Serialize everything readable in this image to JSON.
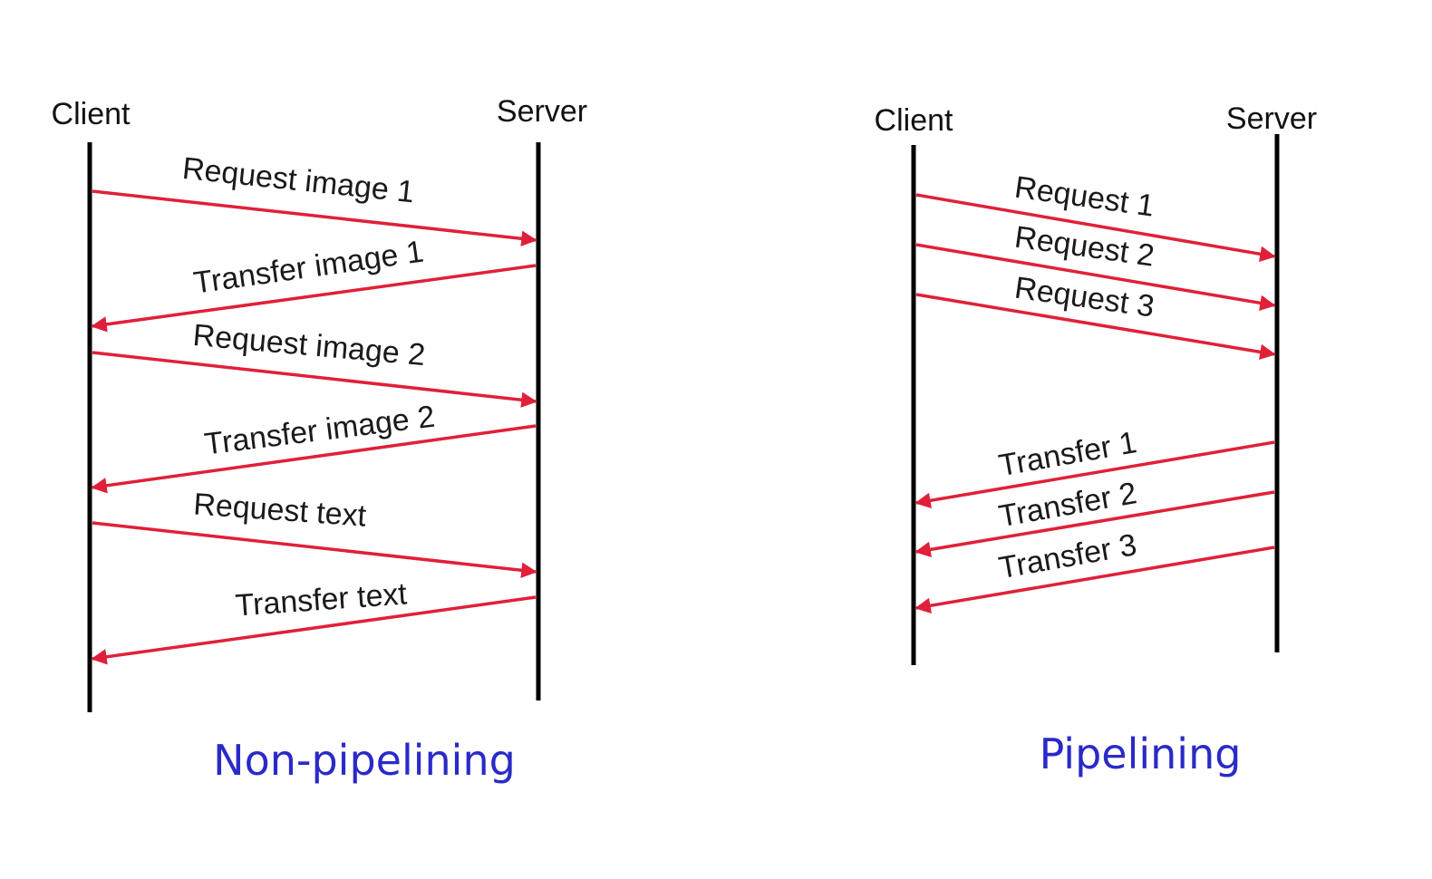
{
  "colors": {
    "arrow": "#e0203a",
    "lifeline": "#000000",
    "caption": "#2a2ac8"
  },
  "diagrams": [
    {
      "id": "non-pipelining",
      "client_label": "Client",
      "server_label": "Server",
      "caption": "Non-pipelining",
      "messages": [
        {
          "label": "Request image 1",
          "direction": "client-to-server"
        },
        {
          "label": "Transfer image 1",
          "direction": "server-to-client"
        },
        {
          "label": "Request image 2",
          "direction": "client-to-server"
        },
        {
          "label": "Transfer image 2",
          "direction": "server-to-client"
        },
        {
          "label": "Request text",
          "direction": "client-to-server"
        },
        {
          "label": "Transfer text",
          "direction": "server-to-client"
        }
      ]
    },
    {
      "id": "pipelining",
      "client_label": "Client",
      "server_label": "Server",
      "caption": "Pipelining",
      "messages": [
        {
          "label": "Request 1",
          "direction": "client-to-server"
        },
        {
          "label": "Request 2",
          "direction": "client-to-server"
        },
        {
          "label": "Request 3",
          "direction": "client-to-server"
        },
        {
          "label": "Transfer 1",
          "direction": "server-to-client"
        },
        {
          "label": "Transfer 2",
          "direction": "server-to-client"
        },
        {
          "label": "Transfer 3",
          "direction": "server-to-client"
        }
      ]
    }
  ]
}
